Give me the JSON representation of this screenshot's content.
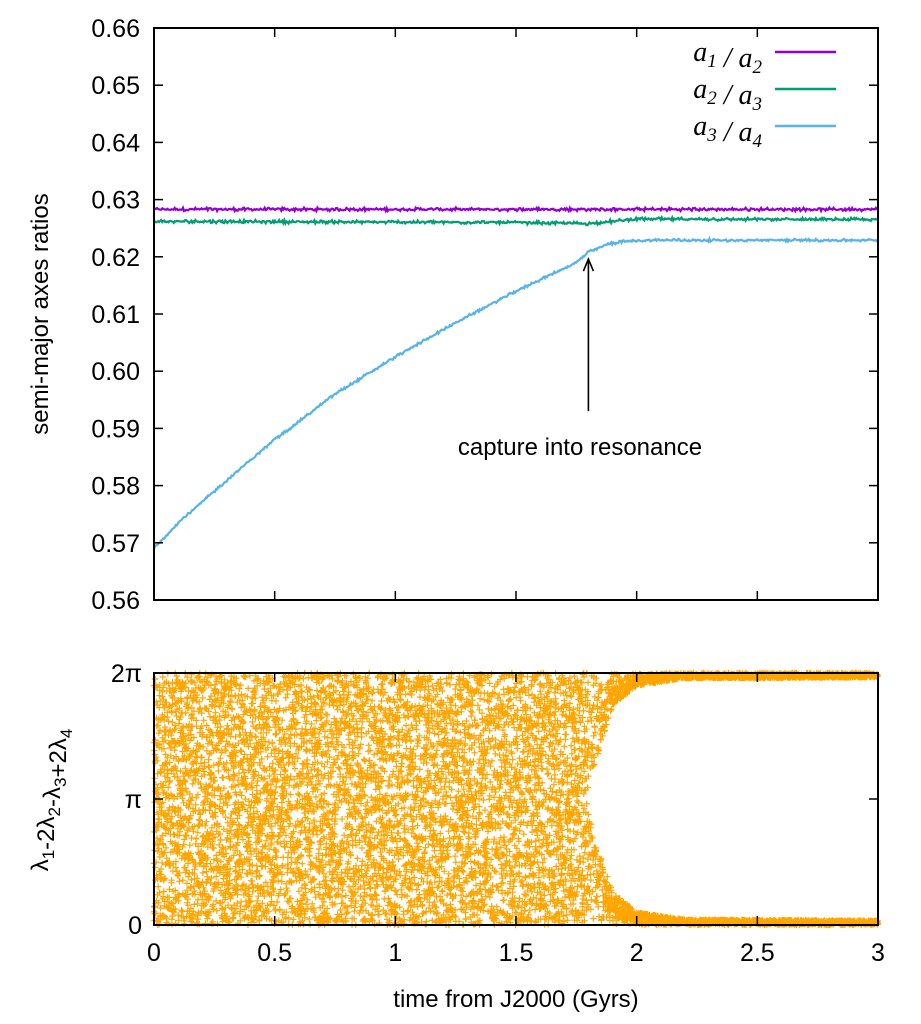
{
  "chart_data": [
    {
      "type": "line",
      "xlim": [
        0,
        3
      ],
      "ylim": [
        0.56,
        0.66
      ],
      "xlabel": "",
      "ylabel": "semi-major axes ratios",
      "yticks": [
        "0.56",
        "0.57",
        "0.58",
        "0.59",
        "0.60",
        "0.61",
        "0.62",
        "0.63",
        "0.64",
        "0.65",
        "0.66"
      ],
      "grid": false,
      "legend_position": "top-right",
      "series": [
        {
          "name": "a1 / a2",
          "legend": {
            "v1": "a",
            "s1": "1",
            "v2": "a",
            "s2": "2"
          },
          "color": "#9400d3",
          "x": [
            0,
            3
          ],
          "y": [
            0.6283,
            0.6283
          ],
          "noise": 0.0003
        },
        {
          "name": "a2 / a3",
          "legend": {
            "v1": "a",
            "s1": "2",
            "v2": "a",
            "s2": "3"
          },
          "color": "#009e73",
          "x": [
            0,
            1.5,
            1.8,
            2.0,
            3.0
          ],
          "y": [
            0.6262,
            0.626,
            0.6258,
            0.6266,
            0.6265
          ],
          "noise": 0.0003
        },
        {
          "name": "a3 / a4",
          "legend": {
            "v1": "a",
            "s1": "3",
            "v2": "a",
            "s2": "4"
          },
          "color": "#56b4e9",
          "x": [
            0,
            0.1,
            0.25,
            0.4,
            0.5,
            0.75,
            1.0,
            1.25,
            1.5,
            1.65,
            1.75,
            1.8,
            1.88,
            1.95,
            2.05,
            2.2,
            2.5,
            3.0
          ],
          "y": [
            0.569,
            0.5735,
            0.579,
            0.5845,
            0.588,
            0.596,
            0.6025,
            0.6085,
            0.614,
            0.617,
            0.619,
            0.6208,
            0.6222,
            0.6227,
            0.6229,
            0.6229,
            0.6229,
            0.6229
          ],
          "noise": 0.00025
        }
      ],
      "annotations": [
        {
          "text": "capture into resonance",
          "arrow_to": {
            "x": 1.8,
            "y": 0.621
          }
        }
      ]
    },
    {
      "type": "scatter",
      "xlim": [
        0,
        3
      ],
      "ylim": [
        0,
        6.2832
      ],
      "xlabel": "time from J2000 (Gyrs)",
      "ylabel_parts": [
        {
          "t": "λ"
        },
        {
          "t": "1",
          "sub": true
        },
        {
          "t": "-2λ"
        },
        {
          "t": "2",
          "sub": true
        },
        {
          "t": "-λ"
        },
        {
          "t": "3",
          "sub": true
        },
        {
          "t": "+2λ"
        },
        {
          "t": "4",
          "sub": true
        }
      ],
      "xticks": [
        "0",
        "0.5",
        "1",
        "1.5",
        "2",
        "2.5",
        "3"
      ],
      "yticks": [
        {
          "value": 0,
          "label": "0"
        },
        {
          "value": 3.1416,
          "label": "π"
        },
        {
          "value": 6.2832,
          "label": "2π"
        }
      ],
      "marker": "+",
      "color": "#ffa500",
      "circulation_until": 1.8,
      "libration": {
        "x": [
          1.8,
          1.9,
          2.0,
          2.2,
          3.0
        ],
        "amplitude": [
          3.14,
          0.9,
          0.35,
          0.15,
          0.12
        ]
      }
    }
  ]
}
